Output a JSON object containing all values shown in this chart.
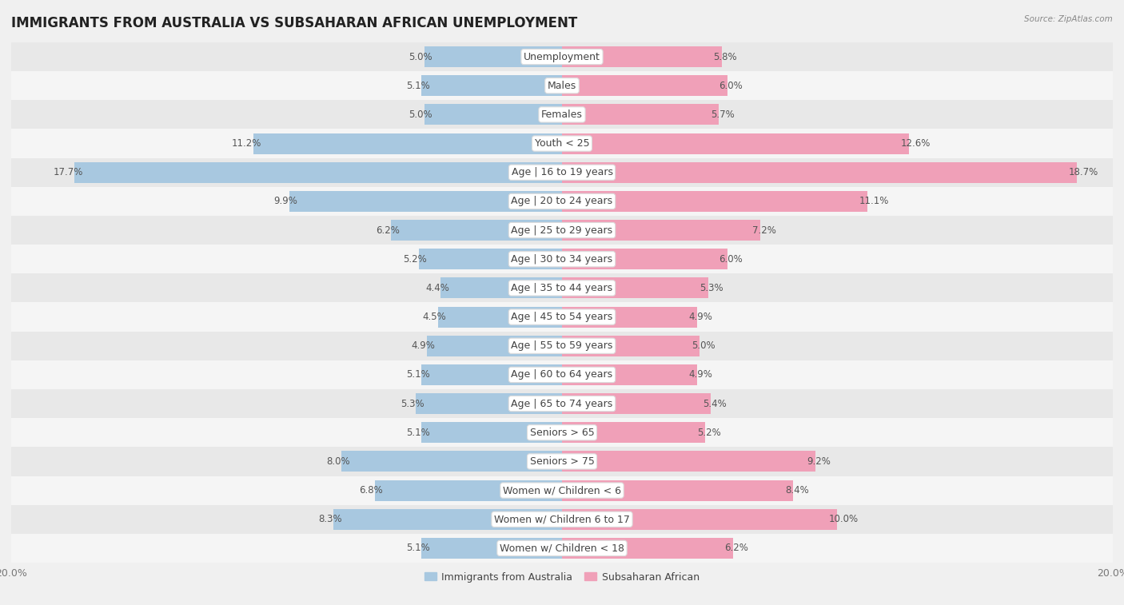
{
  "title": "IMMIGRANTS FROM AUSTRALIA VS SUBSAHARAN AFRICAN UNEMPLOYMENT",
  "source": "Source: ZipAtlas.com",
  "categories": [
    "Unemployment",
    "Males",
    "Females",
    "Youth < 25",
    "Age | 16 to 19 years",
    "Age | 20 to 24 years",
    "Age | 25 to 29 years",
    "Age | 30 to 34 years",
    "Age | 35 to 44 years",
    "Age | 45 to 54 years",
    "Age | 55 to 59 years",
    "Age | 60 to 64 years",
    "Age | 65 to 74 years",
    "Seniors > 65",
    "Seniors > 75",
    "Women w/ Children < 6",
    "Women w/ Children 6 to 17",
    "Women w/ Children < 18"
  ],
  "australia_values": [
    5.0,
    5.1,
    5.0,
    11.2,
    17.7,
    9.9,
    6.2,
    5.2,
    4.4,
    4.5,
    4.9,
    5.1,
    5.3,
    5.1,
    8.0,
    6.8,
    8.3,
    5.1
  ],
  "subsaharan_values": [
    5.8,
    6.0,
    5.7,
    12.6,
    18.7,
    11.1,
    7.2,
    6.0,
    5.3,
    4.9,
    5.0,
    4.9,
    5.4,
    5.2,
    9.2,
    8.4,
    10.0,
    6.2
  ],
  "australia_color": "#a8c8e0",
  "subsaharan_color": "#f0a0b8",
  "australia_label": "Immigrants from Australia",
  "subsaharan_label": "Subsaharan African",
  "xlim": 20.0,
  "bar_height": 0.72,
  "row_colors": [
    "#ebebeb",
    "#f8f8f8"
  ],
  "row_alt_colors": [
    "#f8f8f8",
    "#ebebeb"
  ],
  "title_fontsize": 12,
  "label_fontsize": 9,
  "value_fontsize": 8.5,
  "axis_label_fontsize": 9,
  "background_color": "#f0f0f0"
}
